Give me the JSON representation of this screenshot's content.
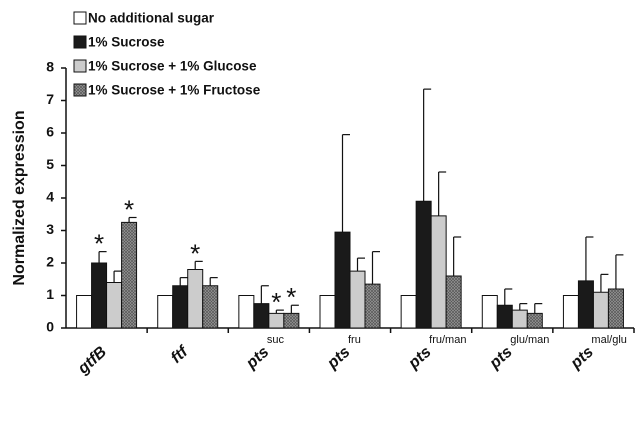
{
  "chart_data": {
    "type": "bar",
    "y_label": "Normalized expression",
    "categories": [
      "gtfB",
      "ftf",
      "pts",
      "pts",
      "pts",
      "pts",
      "pts"
    ],
    "category_superscripts": [
      null,
      null,
      "suc",
      "fru",
      "fru/man",
      "glu/man",
      "mal/glu"
    ],
    "series": [
      {
        "name": "No additional sugar",
        "color": "#ffffff",
        "values": [
          1,
          1,
          1,
          1,
          1,
          1,
          1
        ]
      },
      {
        "name": "1%  Sucrose",
        "color": "#1a1a1a",
        "values": [
          2.0,
          1.3,
          0.75,
          2.95,
          3.9,
          0.7,
          1.45
        ],
        "errors": [
          0.35,
          0.25,
          0.55,
          3.0,
          3.45,
          0.5,
          1.35
        ]
      },
      {
        "name": "1%  Sucrose + 1%  Glucose",
        "color": "#cccccc",
        "values": [
          1.4,
          1.8,
          0.45,
          1.75,
          3.45,
          0.55,
          1.1
        ],
        "errors": [
          0.35,
          0.25,
          0.1,
          0.4,
          1.35,
          0.2,
          0.55
        ]
      },
      {
        "name": "1%  Sucrose + 1%  Fructose",
        "color": "#8c8c8c",
        "pattern": "crosshatch",
        "values": [
          3.25,
          1.3,
          0.45,
          1.35,
          1.6,
          0.45,
          1.2
        ],
        "errors": [
          0.15,
          0.25,
          0.25,
          1.0,
          1.2,
          0.3,
          1.05
        ]
      }
    ],
    "annotations": [
      {
        "text": "*",
        "series": 1,
        "category": 0
      },
      {
        "text": "*",
        "series": 3,
        "category": 0
      },
      {
        "text": "*",
        "series": 2,
        "category": 1
      },
      {
        "text": "*",
        "series": 2,
        "category": 2
      },
      {
        "text": "*",
        "series": 3,
        "category": 2
      }
    ],
    "ylim": [
      0,
      8
    ],
    "yticks": [
      0,
      1,
      2,
      3,
      4,
      5,
      6,
      7,
      8
    ],
    "grid": false,
    "legend": "top-left"
  }
}
